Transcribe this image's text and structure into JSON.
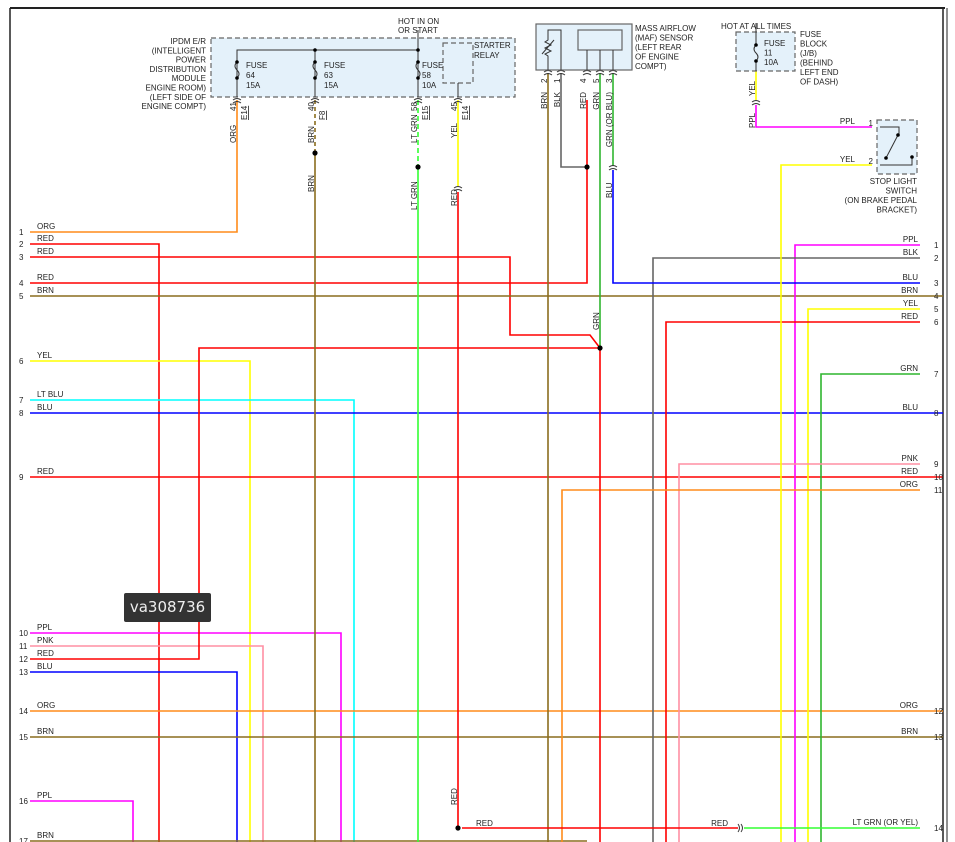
{
  "colors": {
    "ORG": "#ff8c1a",
    "RED": "#ff0000",
    "BRN": "#8a6d1e",
    "YEL": "#ffff00",
    "LT BLU": "#00ffff",
    "BLU": "#0000ff",
    "PPL": "#ff00ff",
    "PNK": "#ff8fa3",
    "GRN": "#2fb52f",
    "LT GRN": "#33ff33",
    "BLK": "#666666"
  },
  "watermark": "va308736",
  "ipdm": {
    "name_lines": [
      "IPDM E/R",
      "(INTELLIGENT",
      "POWER",
      "DISTRIBUTION",
      "MODULE",
      "ENGINE ROOM)",
      "(LEFT SIDE OF",
      "ENGINE COMPT)"
    ],
    "hot_lines": [
      "HOT IN ON",
      "OR START"
    ],
    "fuses": [
      {
        "label": "FUSE",
        "number": "64",
        "rating": "15A",
        "pin": "41",
        "connector": "E14",
        "wire": "ORG"
      },
      {
        "label": "FUSE",
        "number": "63",
        "rating": "15A",
        "pin": "40",
        "connector": "F8",
        "wire": "BRN"
      },
      {
        "label": "FUSE",
        "number": "58",
        "rating": "10A",
        "pin": "58",
        "connector": "E15",
        "wire": "LT GRN"
      }
    ],
    "relay_lines": [
      "STARTER",
      "RELAY"
    ],
    "relay_pin": {
      "pin": "45",
      "connector": "E14",
      "wire": "YEL"
    }
  },
  "splice_labels": {
    "brn_lower": "BRN",
    "ltgrn_lower": "LT GRN",
    "yel_to_red": "RED",
    "red_lower": "RED",
    "grn_mid": "GRN",
    "blu_lower": "BLU"
  },
  "maf": {
    "name_lines": [
      "MASS AIRFLOW",
      "(MAF) SENSOR",
      "(LEFT REAR",
      "OF ENGINE",
      "COMPT)"
    ],
    "pins": [
      {
        "pin": "2",
        "wire": "BRN"
      },
      {
        "pin": "1",
        "wire": "BLK"
      },
      {
        "pin": "4",
        "wire": "RED"
      },
      {
        "pin": "5",
        "wire": "GRN"
      },
      {
        "pin": "3",
        "wire": "GRN (OR BLU)"
      }
    ]
  },
  "fuse_block": {
    "hot_label": "HOT AT ALL TIMES",
    "fuse_lines": [
      "FUSE",
      "11",
      "10A"
    ],
    "name_lines": [
      "FUSE",
      "BLOCK",
      "(J/B)",
      "(BEHIND",
      "LEFT END",
      "OF DASH)"
    ],
    "wire_top": "YEL",
    "wire_bottom": "PPL"
  },
  "stop_light_switch": {
    "name_lines": [
      "STOP LIGHT",
      "SWITCH",
      "(ON BRAKE PEDAL",
      "BRACKET)"
    ],
    "pins": [
      {
        "pin": "1",
        "wire": "PPL"
      },
      {
        "pin": "2",
        "wire": "YEL"
      }
    ]
  },
  "left_pins": [
    {
      "pin": "1",
      "wire": "ORG"
    },
    {
      "pin": "2",
      "wire": "RED"
    },
    {
      "pin": "3",
      "wire": "RED"
    },
    {
      "pin": "4",
      "wire": "RED"
    },
    {
      "pin": "5",
      "wire": "BRN"
    },
    {
      "pin": "6",
      "wire": "YEL"
    },
    {
      "pin": "7",
      "wire": "LT BLU"
    },
    {
      "pin": "8",
      "wire": "BLU"
    },
    {
      "pin": "9",
      "wire": "RED"
    },
    {
      "pin": "10",
      "wire": "PPL"
    },
    {
      "pin": "11",
      "wire": "PNK"
    },
    {
      "pin": "12",
      "wire": "RED"
    },
    {
      "pin": "13",
      "wire": "BLU"
    },
    {
      "pin": "14",
      "wire": "ORG"
    },
    {
      "pin": "15",
      "wire": "BRN"
    },
    {
      "pin": "16",
      "wire": "PPL"
    },
    {
      "pin": "17",
      "wire": "BRN"
    }
  ],
  "right_pins": [
    {
      "pin": "1",
      "wire": "PPL"
    },
    {
      "pin": "2",
      "wire": "BLK"
    },
    {
      "pin": "3",
      "wire": "BLU"
    },
    {
      "pin": "4",
      "wire": "BRN"
    },
    {
      "pin": "5",
      "wire": "YEL"
    },
    {
      "pin": "6",
      "wire": "RED"
    },
    {
      "pin": "7",
      "wire": "GRN"
    },
    {
      "pin": "8",
      "wire": "BLU"
    },
    {
      "pin": "9",
      "wire": "PNK"
    },
    {
      "pin": "10",
      "wire": "RED"
    },
    {
      "pin": "11",
      "wire": "ORG"
    },
    {
      "pin": "12",
      "wire": "ORG"
    },
    {
      "pin": "13",
      "wire": "BRN"
    },
    {
      "pin": "14",
      "wire": "LT GRN  (OR YEL)"
    }
  ],
  "bottom_splice": {
    "left_label": "RED",
    "right_label": "RED"
  }
}
